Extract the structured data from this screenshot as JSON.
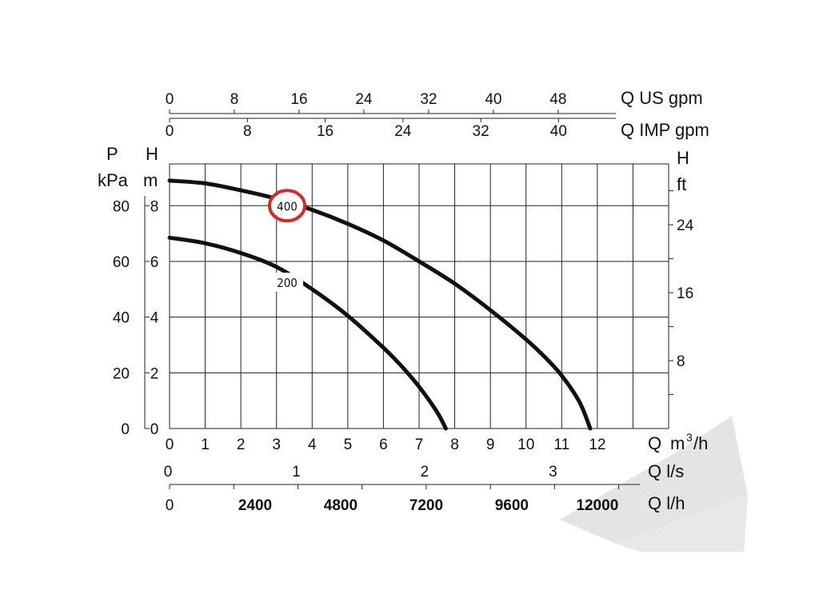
{
  "chart_data": {
    "type": "line",
    "title": "",
    "x_axis": {
      "label": "Q",
      "unit_base": "m",
      "unit_exp": "3",
      "unit_tail": "/h",
      "range": [
        0,
        14
      ],
      "ticks": [
        0,
        1,
        2,
        3,
        4,
        5,
        6,
        7,
        8,
        9,
        10,
        11,
        12
      ]
    },
    "y_axis_left_H": {
      "label": "H",
      "unit": "m",
      "range": [
        0,
        9.5
      ],
      "ticks": [
        0,
        2,
        4,
        6,
        8
      ]
    },
    "y_axis_left_P": {
      "label": "P",
      "unit": "kPa",
      "ticks": [
        0,
        20,
        40,
        60,
        80
      ]
    },
    "y_axis_right_H_ft": {
      "label": "H",
      "unit": "ft",
      "labeled_ticks": [
        8,
        16,
        24
      ],
      "minor_ticks": [
        4,
        12,
        20,
        28
      ]
    },
    "top_axis_us_gpm": {
      "label": "Q US gpm",
      "ticks": [
        0,
        8,
        16,
        24,
        32,
        40,
        48
      ]
    },
    "top_axis_imp_gpm": {
      "label": "Q IMP gpm",
      "ticks": [
        0,
        8,
        16,
        24,
        32,
        40
      ]
    },
    "bottom_axis_ls": {
      "label": "Q l/s",
      "ticks": [
        0,
        1,
        2,
        3
      ]
    },
    "bottom_axis_lh": {
      "label": "Q l/h",
      "ticks": [
        "0",
        "2400",
        "4800",
        "7200",
        "9600",
        "12000"
      ],
      "tick_values": [
        0,
        2400,
        4800,
        7200,
        9600,
        12000
      ]
    },
    "grid": true,
    "series": [
      {
        "name": "400",
        "highlighted": true,
        "highlight_color": "#d42a2a",
        "points": [
          [
            0,
            8.9
          ],
          [
            1,
            8.8
          ],
          [
            2,
            8.55
          ],
          [
            3,
            8.25
          ],
          [
            4,
            7.85
          ],
          [
            5,
            7.35
          ],
          [
            6,
            6.75
          ],
          [
            7,
            6.0
          ],
          [
            8,
            5.2
          ],
          [
            9,
            4.25
          ],
          [
            10,
            3.2
          ],
          [
            10.5,
            2.6
          ],
          [
            11,
            1.9
          ],
          [
            11.5,
            0.95
          ],
          [
            11.8,
            0
          ]
        ]
      },
      {
        "name": "200",
        "highlighted": false,
        "points": [
          [
            0,
            6.85
          ],
          [
            1,
            6.65
          ],
          [
            2,
            6.3
          ],
          [
            3,
            5.8
          ],
          [
            4,
            5.0
          ],
          [
            5,
            4.05
          ],
          [
            6,
            2.9
          ],
          [
            6.5,
            2.25
          ],
          [
            7,
            1.5
          ],
          [
            7.5,
            0.6
          ],
          [
            7.75,
            0
          ]
        ]
      }
    ]
  }
}
